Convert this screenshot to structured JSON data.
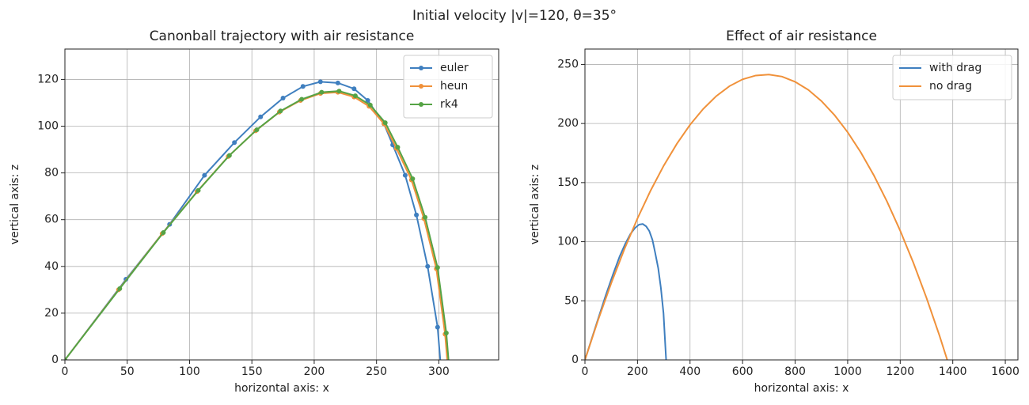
{
  "title": "Initial velocity |v|=120, θ=35°",
  "chart_data": [
    {
      "type": "line",
      "title": "Canonball trajectory with air resistance",
      "x_label": "horizontal axis: x",
      "y_label": "vertical axis: z",
      "marker": "o",
      "grid": true,
      "legend": "upper right",
      "xlim": [
        0,
        348
      ],
      "ylim": [
        0,
        133
      ],
      "xticks": [
        0,
        50,
        100,
        150,
        200,
        250,
        300
      ],
      "yticks": [
        0,
        20,
        40,
        60,
        80,
        100,
        120
      ],
      "series": [
        {
          "name": "euler",
          "color": "#3f7fbf",
          "x": [
            0,
            49,
            84,
            112,
            136,
            157,
            175,
            191,
            205,
            219,
            232,
            243,
            256,
            263,
            273,
            282,
            291,
            299,
            303
          ],
          "values": [
            0,
            34.5,
            58,
            79,
            93,
            104,
            112,
            117,
            119,
            118.5,
            116,
            111,
            101,
            92,
            79,
            62,
            40,
            14,
            -12
          ]
        },
        {
          "name": "heun",
          "color": "#f0913a",
          "x": [
            0,
            43,
            78,
            106,
            131,
            153,
            172,
            189,
            205,
            219,
            232,
            244,
            256,
            266,
            278,
            288,
            298,
            305,
            308
          ],
          "values": [
            0,
            30,
            54,
            72,
            87,
            98,
            106,
            111,
            114,
            114.5,
            112.5,
            108.5,
            101,
            90.5,
            77,
            60.5,
            39,
            11,
            -8
          ]
        },
        {
          "name": "rk4",
          "color": "#55a345",
          "x": [
            0,
            44,
            79,
            107,
            132,
            154,
            173,
            190,
            206,
            220,
            233,
            245,
            257,
            267,
            279,
            289,
            299,
            306,
            309
          ],
          "values": [
            0,
            30.5,
            54.5,
            72.5,
            87.5,
            98.5,
            106.5,
            111.5,
            114.5,
            115,
            113,
            109,
            101.5,
            91,
            77.5,
            61,
            39.5,
            11.5,
            -8
          ]
        }
      ]
    },
    {
      "type": "line",
      "title": "Effect of air resistance",
      "x_label": "horizontal axis: x",
      "y_label": "vertical axis: z",
      "grid": true,
      "legend": "upper right",
      "xlim": [
        0,
        1648
      ],
      "ylim": [
        0,
        263
      ],
      "xticks": [
        0,
        200,
        400,
        600,
        800,
        1000,
        1200,
        1400,
        1600
      ],
      "yticks": [
        0,
        50,
        100,
        150,
        200,
        250
      ],
      "series": [
        {
          "name": "with drag",
          "color": "#3f7fbf",
          "x": [
            0,
            44,
            79,
            107,
            132,
            154,
            173,
            190,
            206,
            220,
            233,
            245,
            257,
            267,
            279,
            289,
            299,
            306,
            309
          ],
          "values": [
            0,
            30.5,
            54.5,
            72.5,
            87.5,
            98.5,
            106.5,
            111.5,
            114.5,
            115,
            113,
            109,
            101.5,
            91,
            77.5,
            61,
            39.5,
            11.5,
            0
          ]
        },
        {
          "name": "no drag",
          "color": "#f0913a",
          "x": [
            0,
            50,
            100,
            150,
            200,
            250,
            300,
            350,
            400,
            450,
            500,
            550,
            600,
            650,
            700,
            750,
            800,
            850,
            900,
            950,
            1000,
            1050,
            1100,
            1150,
            1200,
            1250,
            1300,
            1350,
            1379
          ],
          "values": [
            0,
            33.7,
            64.9,
            93.6,
            119.7,
            143.3,
            164.4,
            182.9,
            198.9,
            212.3,
            223.2,
            231.6,
            237.4,
            240.6,
            241.4,
            239.7,
            235.3,
            228.5,
            219,
            207.1,
            192.6,
            175.6,
            156,
            133.9,
            109.3,
            82.2,
            52.5,
            20.2,
            0
          ]
        }
      ]
    }
  ]
}
